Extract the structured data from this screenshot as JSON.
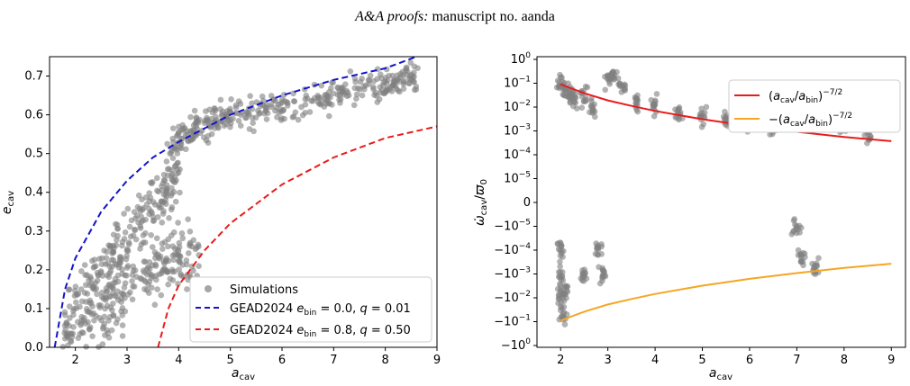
{
  "header": {
    "journal_italic": "A&A proofs:",
    "journal_rest": " manuscript no. aanda"
  },
  "chart_data": [
    {
      "type": "scatter",
      "xlabel": "a_cav",
      "ylabel": "e_cav",
      "xlim": [
        1.5,
        9.0
      ],
      "ylim": [
        0.0,
        0.75
      ],
      "xticks": [
        2,
        3,
        4,
        5,
        6,
        7,
        8,
        9
      ],
      "yticks": [
        0.0,
        0.1,
        0.2,
        0.3,
        0.4,
        0.5,
        0.6,
        0.7
      ],
      "grid": false,
      "legend_position": "bottom-right",
      "series": [
        {
          "name": "Simulations",
          "kind": "scatter",
          "color": "#808080",
          "bands": [
            {
              "x": [
                1.8,
                2.4,
                3.0,
                3.6,
                4.0
              ],
              "y": [
                0.05,
                0.18,
                0.28,
                0.38,
                0.45
              ],
              "spread": 0.1
            },
            {
              "x": [
                3.8,
                4.4,
                5.0,
                6.0,
                7.0,
                8.0,
                8.6
              ],
              "y": [
                0.52,
                0.57,
                0.6,
                0.62,
                0.65,
                0.68,
                0.7
              ],
              "spread": 0.06
            },
            {
              "x": [
                1.8,
                2.6,
                3.2,
                3.8,
                4.4
              ],
              "y": [
                0.02,
                0.1,
                0.18,
                0.22,
                0.26
              ],
              "spread": 0.12
            }
          ]
        },
        {
          "name": "GEAD2024 e_bin = 0.0, q = 0.01",
          "kind": "dashed-line",
          "color": "#1414c8",
          "x": [
            1.6,
            1.8,
            2.0,
            2.5,
            3.0,
            3.5,
            4.0,
            5.0,
            6.0,
            7.0,
            8.0,
            8.6
          ],
          "y": [
            0.0,
            0.15,
            0.23,
            0.35,
            0.43,
            0.49,
            0.53,
            0.6,
            0.65,
            0.69,
            0.72,
            0.75
          ]
        },
        {
          "name": "GEAD2024 e_bin = 0.8, q = 0.50",
          "kind": "dashed-line",
          "color": "#e81c1c",
          "x": [
            3.6,
            3.8,
            4.0,
            4.5,
            5.0,
            6.0,
            7.0,
            8.0,
            9.0
          ],
          "y": [
            0.0,
            0.1,
            0.16,
            0.25,
            0.32,
            0.42,
            0.49,
            0.54,
            0.57
          ]
        }
      ]
    },
    {
      "type": "scatter",
      "xlabel": "a_cav",
      "ylabel": "ω̇_cav/ϖ_0",
      "yscale": "symlog",
      "xlim": [
        1.5,
        9.3
      ],
      "ylim_levels": [
        -1,
        1
      ],
      "xticks": [
        2,
        3,
        4,
        5,
        6,
        7,
        8,
        9
      ],
      "yticks": [
        "10^0",
        "10^-1",
        "10^-2",
        "10^-3",
        "10^-4",
        "10^-5",
        "0",
        "-10^-5",
        "-10^-4",
        "-10^-3",
        "-10^-2",
        "-10^-1",
        "-10^0"
      ],
      "grid": false,
      "legend_position": "top-right",
      "series": [
        {
          "name": "(a_cav/a_bin)^-7/2",
          "kind": "line",
          "color": "#e81c1c",
          "x": [
            2.0,
            2.5,
            3.0,
            3.5,
            4.0,
            5.0,
            6.0,
            7.0,
            8.0,
            9.0
          ],
          "y": [
            0.09,
            0.038,
            0.019,
            0.0112,
            0.0069,
            0.0031,
            0.0016,
            0.00092,
            0.00056,
            0.00037
          ]
        },
        {
          "name": "-(a_cav/a_bin)^-7/2",
          "kind": "line",
          "color": "#f5a623",
          "x": [
            2.0,
            2.5,
            3.0,
            3.5,
            4.0,
            5.0,
            6.0,
            7.0,
            8.0,
            9.0
          ],
          "y": [
            -0.09,
            -0.038,
            -0.019,
            -0.0112,
            -0.0069,
            -0.0031,
            -0.0016,
            -0.00092,
            -0.00056,
            -0.00037
          ]
        },
        {
          "name": "Simulations",
          "kind": "scatter",
          "color": "#808080",
          "points": [
            {
              "x": 2.0,
              "y": 0.08
            },
            {
              "x": 2.1,
              "y": 0.05
            },
            {
              "x": 2.2,
              "y": 0.03
            },
            {
              "x": 2.3,
              "y": 0.02
            },
            {
              "x": 2.5,
              "y": 0.03
            },
            {
              "x": 2.7,
              "y": 0.01
            },
            {
              "x": 3.0,
              "y": 0.15
            },
            {
              "x": 3.1,
              "y": 0.2
            },
            {
              "x": 3.3,
              "y": 0.08
            },
            {
              "x": 3.6,
              "y": 0.02
            },
            {
              "x": 4.0,
              "y": 0.012
            },
            {
              "x": 4.5,
              "y": 0.006
            },
            {
              "x": 5.0,
              "y": 0.004
            },
            {
              "x": 5.5,
              "y": 0.003
            },
            {
              "x": 6.0,
              "y": 0.002
            },
            {
              "x": 6.5,
              "y": 0.0015
            },
            {
              "x": 7.0,
              "y": 0.003
            },
            {
              "x": 7.5,
              "y": 0.0025
            },
            {
              "x": 8.0,
              "y": 0.0012
            },
            {
              "x": 8.5,
              "y": 0.0006
            },
            {
              "x": 2.0,
              "y": -0.0001
            },
            {
              "x": 2.0,
              "y": -0.001
            },
            {
              "x": 2.0,
              "y": -0.01
            },
            {
              "x": 2.05,
              "y": -0.05
            },
            {
              "x": 2.1,
              "y": -0.005
            },
            {
              "x": 2.5,
              "y": -0.001
            },
            {
              "x": 2.8,
              "y": -0.0001
            },
            {
              "x": 2.9,
              "y": -0.001
            },
            {
              "x": 7.0,
              "y": -1e-05
            },
            {
              "x": 7.1,
              "y": -0.0002
            },
            {
              "x": 7.4,
              "y": -0.0006
            }
          ]
        }
      ]
    }
  ]
}
